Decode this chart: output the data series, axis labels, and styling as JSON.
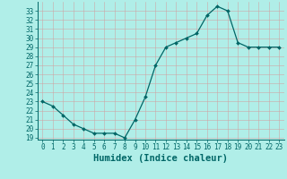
{
  "x": [
    0,
    1,
    2,
    3,
    4,
    5,
    6,
    7,
    8,
    9,
    10,
    11,
    12,
    13,
    14,
    15,
    16,
    17,
    18,
    19,
    20,
    21,
    22,
    23
  ],
  "y": [
    23.0,
    22.5,
    21.5,
    20.5,
    20.0,
    19.5,
    19.5,
    19.5,
    19.0,
    21.0,
    23.5,
    27.0,
    29.0,
    29.5,
    30.0,
    30.5,
    32.5,
    33.5,
    33.0,
    29.5,
    29.0,
    29.0,
    29.0,
    29.0
  ],
  "xlabel": "Humidex (Indice chaleur)",
  "ylim_min": 18.8,
  "ylim_max": 34.0,
  "xlim_min": -0.5,
  "xlim_max": 23.5,
  "yticks": [
    19,
    20,
    21,
    22,
    23,
    24,
    25,
    26,
    27,
    28,
    29,
    30,
    31,
    32,
    33
  ],
  "xticks": [
    0,
    1,
    2,
    3,
    4,
    5,
    6,
    7,
    8,
    9,
    10,
    11,
    12,
    13,
    14,
    15,
    16,
    17,
    18,
    19,
    20,
    21,
    22,
    23
  ],
  "line_color": "#006666",
  "bg_color": "#b0eee8",
  "grid_major_color": "#c8c8c8",
  "grid_minor_color": "#d8eeee",
  "tick_label_fontsize": 5.5,
  "xlabel_fontsize": 7.5
}
